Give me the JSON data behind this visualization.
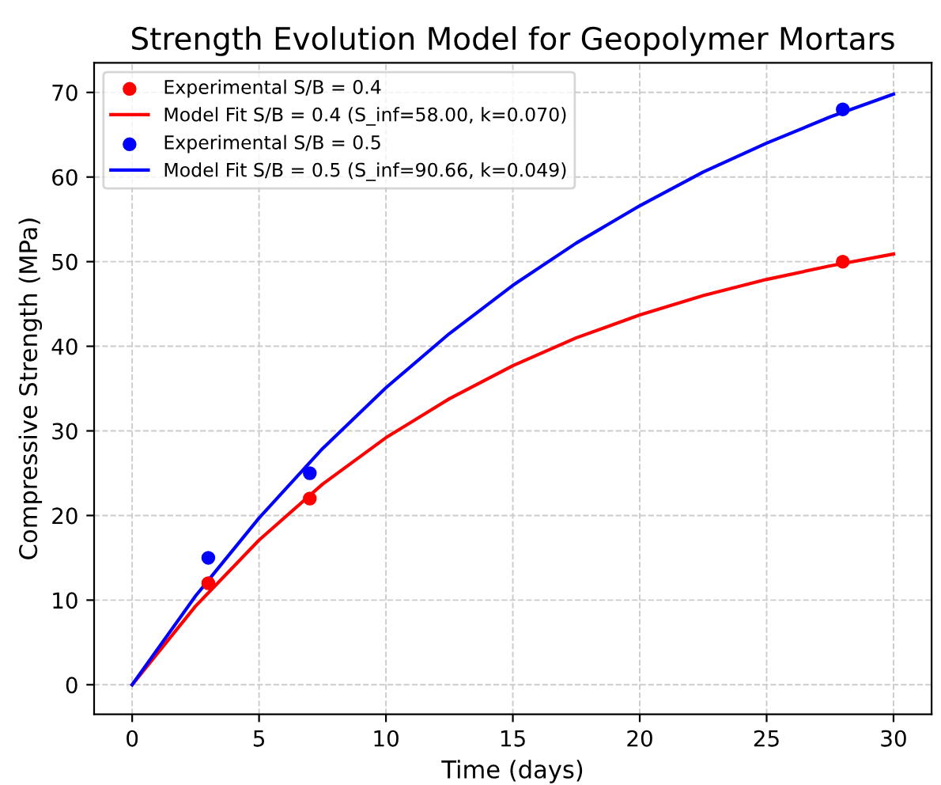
{
  "chart_data": {
    "type": "line",
    "title": "Strength Evolution Model for Geopolymer Mortars",
    "xlabel": "Time (days)",
    "ylabel": "Compressive Strength (MPa)",
    "xlim": [
      -1.5,
      31.5
    ],
    "ylim": [
      -3.5,
      73.5
    ],
    "xticks": [
      0,
      5,
      10,
      15,
      20,
      25,
      30
    ],
    "yticks": [
      0,
      10,
      20,
      30,
      40,
      50,
      60,
      70
    ],
    "grid": true,
    "legend": "top left",
    "series": [
      {
        "name": "Experimental S/B = 0.4",
        "type": "scatter",
        "marker": "circle",
        "color": "#ff0000",
        "x": [
          3,
          7,
          28
        ],
        "values": [
          12,
          22,
          50
        ]
      },
      {
        "name": "Model Fit S/B = 0.4 (S_inf=58.00, k=0.070)",
        "line_style": "solid",
        "color": "#ff0000",
        "x": [
          0,
          2.5,
          5,
          7.5,
          10,
          12.5,
          15,
          17.5,
          20,
          22.5,
          25,
          27.5,
          30
        ],
        "values": [
          0,
          9.3,
          17.1,
          23.7,
          29.2,
          33.8,
          37.7,
          41.0,
          43.7,
          46.0,
          47.9,
          49.5,
          50.9
        ]
      },
      {
        "name": "Experimental S/B = 0.5",
        "type": "scatter",
        "marker": "circle",
        "color": "#0000ff",
        "x": [
          3,
          7,
          28
        ],
        "values": [
          15,
          25,
          68
        ]
      },
      {
        "name": "Model Fit S/B = 0.5 (S_inf=90.66, k=0.049)",
        "line_style": "solid",
        "color": "#0000ff",
        "x": [
          0,
          2.5,
          5,
          7.5,
          10,
          12.5,
          15,
          17.5,
          20,
          22.5,
          25,
          27.5,
          30
        ],
        "values": [
          0,
          10.5,
          19.7,
          27.9,
          35.1,
          41.5,
          47.2,
          52.2,
          56.6,
          60.6,
          64.0,
          67.1,
          69.8
        ]
      }
    ]
  }
}
